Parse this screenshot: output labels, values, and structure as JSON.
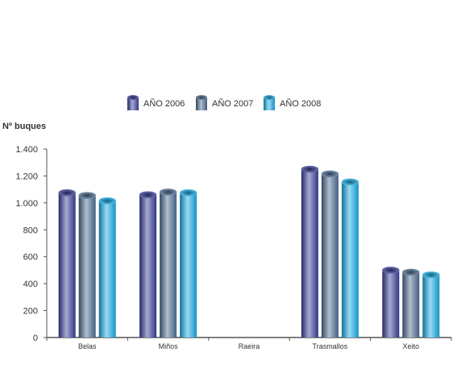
{
  "chart_data": {
    "type": "bar",
    "title": "",
    "xlabel": "",
    "ylabel": "Nº buques",
    "ylim": [
      0,
      1400
    ],
    "yticks": [
      0,
      200,
      400,
      600,
      800,
      1000,
      1200,
      1400
    ],
    "ytick_labels": [
      "0",
      "200",
      "400",
      "600",
      "800",
      "1.000",
      "1.200",
      "1.400"
    ],
    "categories": [
      "Belas",
      "Miños",
      "Raeira",
      "Trasmallos",
      "Xeito"
    ],
    "legend_position": "top-center",
    "grid": false,
    "series": [
      {
        "name": "AÑO 2006",
        "color": "#3a3f9a",
        "values": [
          1075,
          1060,
          0,
          1250,
          500
        ]
      },
      {
        "name": "AÑO 2007",
        "color": "#4f6f95",
        "values": [
          1055,
          1080,
          0,
          1215,
          485
        ]
      },
      {
        "name": "AÑO 2008",
        "color": "#19aee8",
        "values": [
          1015,
          1075,
          0,
          1155,
          465
        ]
      }
    ]
  }
}
